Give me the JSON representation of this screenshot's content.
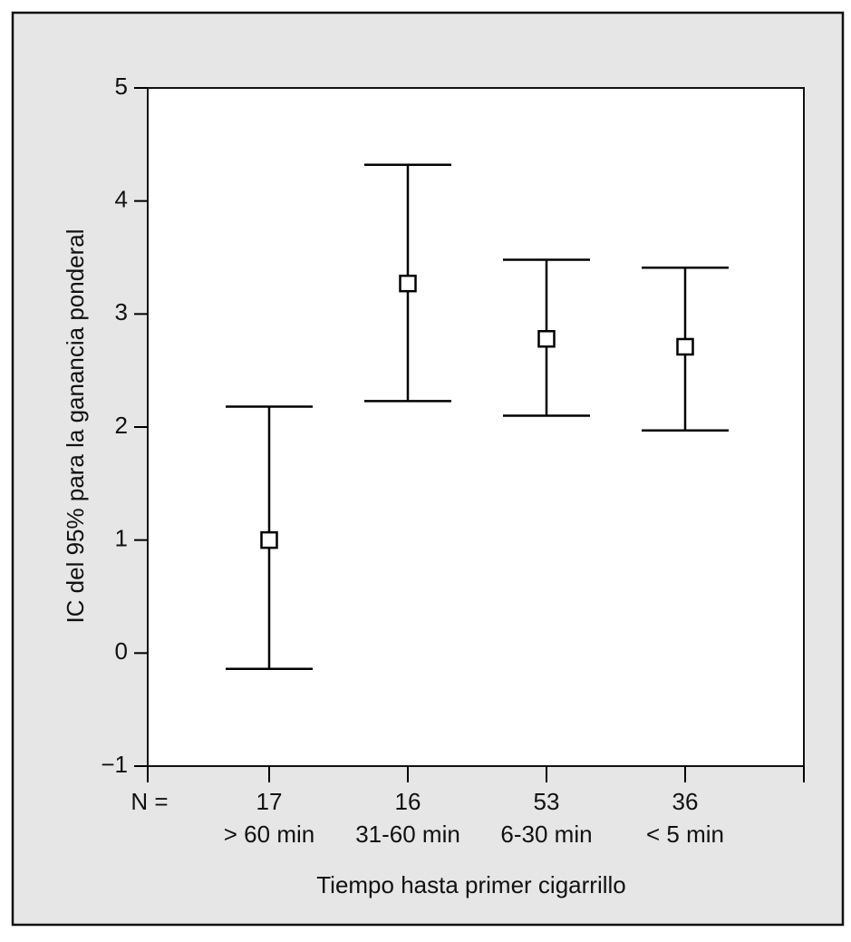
{
  "chart_data": {
    "type": "errorbar",
    "y_label": "IC del 95% para la ganancia ponderal",
    "x_label": "Tiempo hasta primer cigarrillo",
    "n_label": "N =",
    "n_counts": [
      17,
      16,
      53,
      36
    ],
    "categories": [
      "> 60 min",
      "31-60 min",
      "6-30 min",
      "< 5 min"
    ],
    "values": [
      1.0,
      3.27,
      2.78,
      2.71
    ],
    "lower": [
      -0.14,
      2.23,
      2.1,
      1.97
    ],
    "upper": [
      2.18,
      4.32,
      3.48,
      3.41
    ],
    "color": "#000000",
    "ylim": [
      -1,
      5
    ],
    "yticks": [
      {
        "value": -1,
        "label": "−1"
      },
      0,
      1,
      2,
      3,
      4,
      5
    ]
  }
}
